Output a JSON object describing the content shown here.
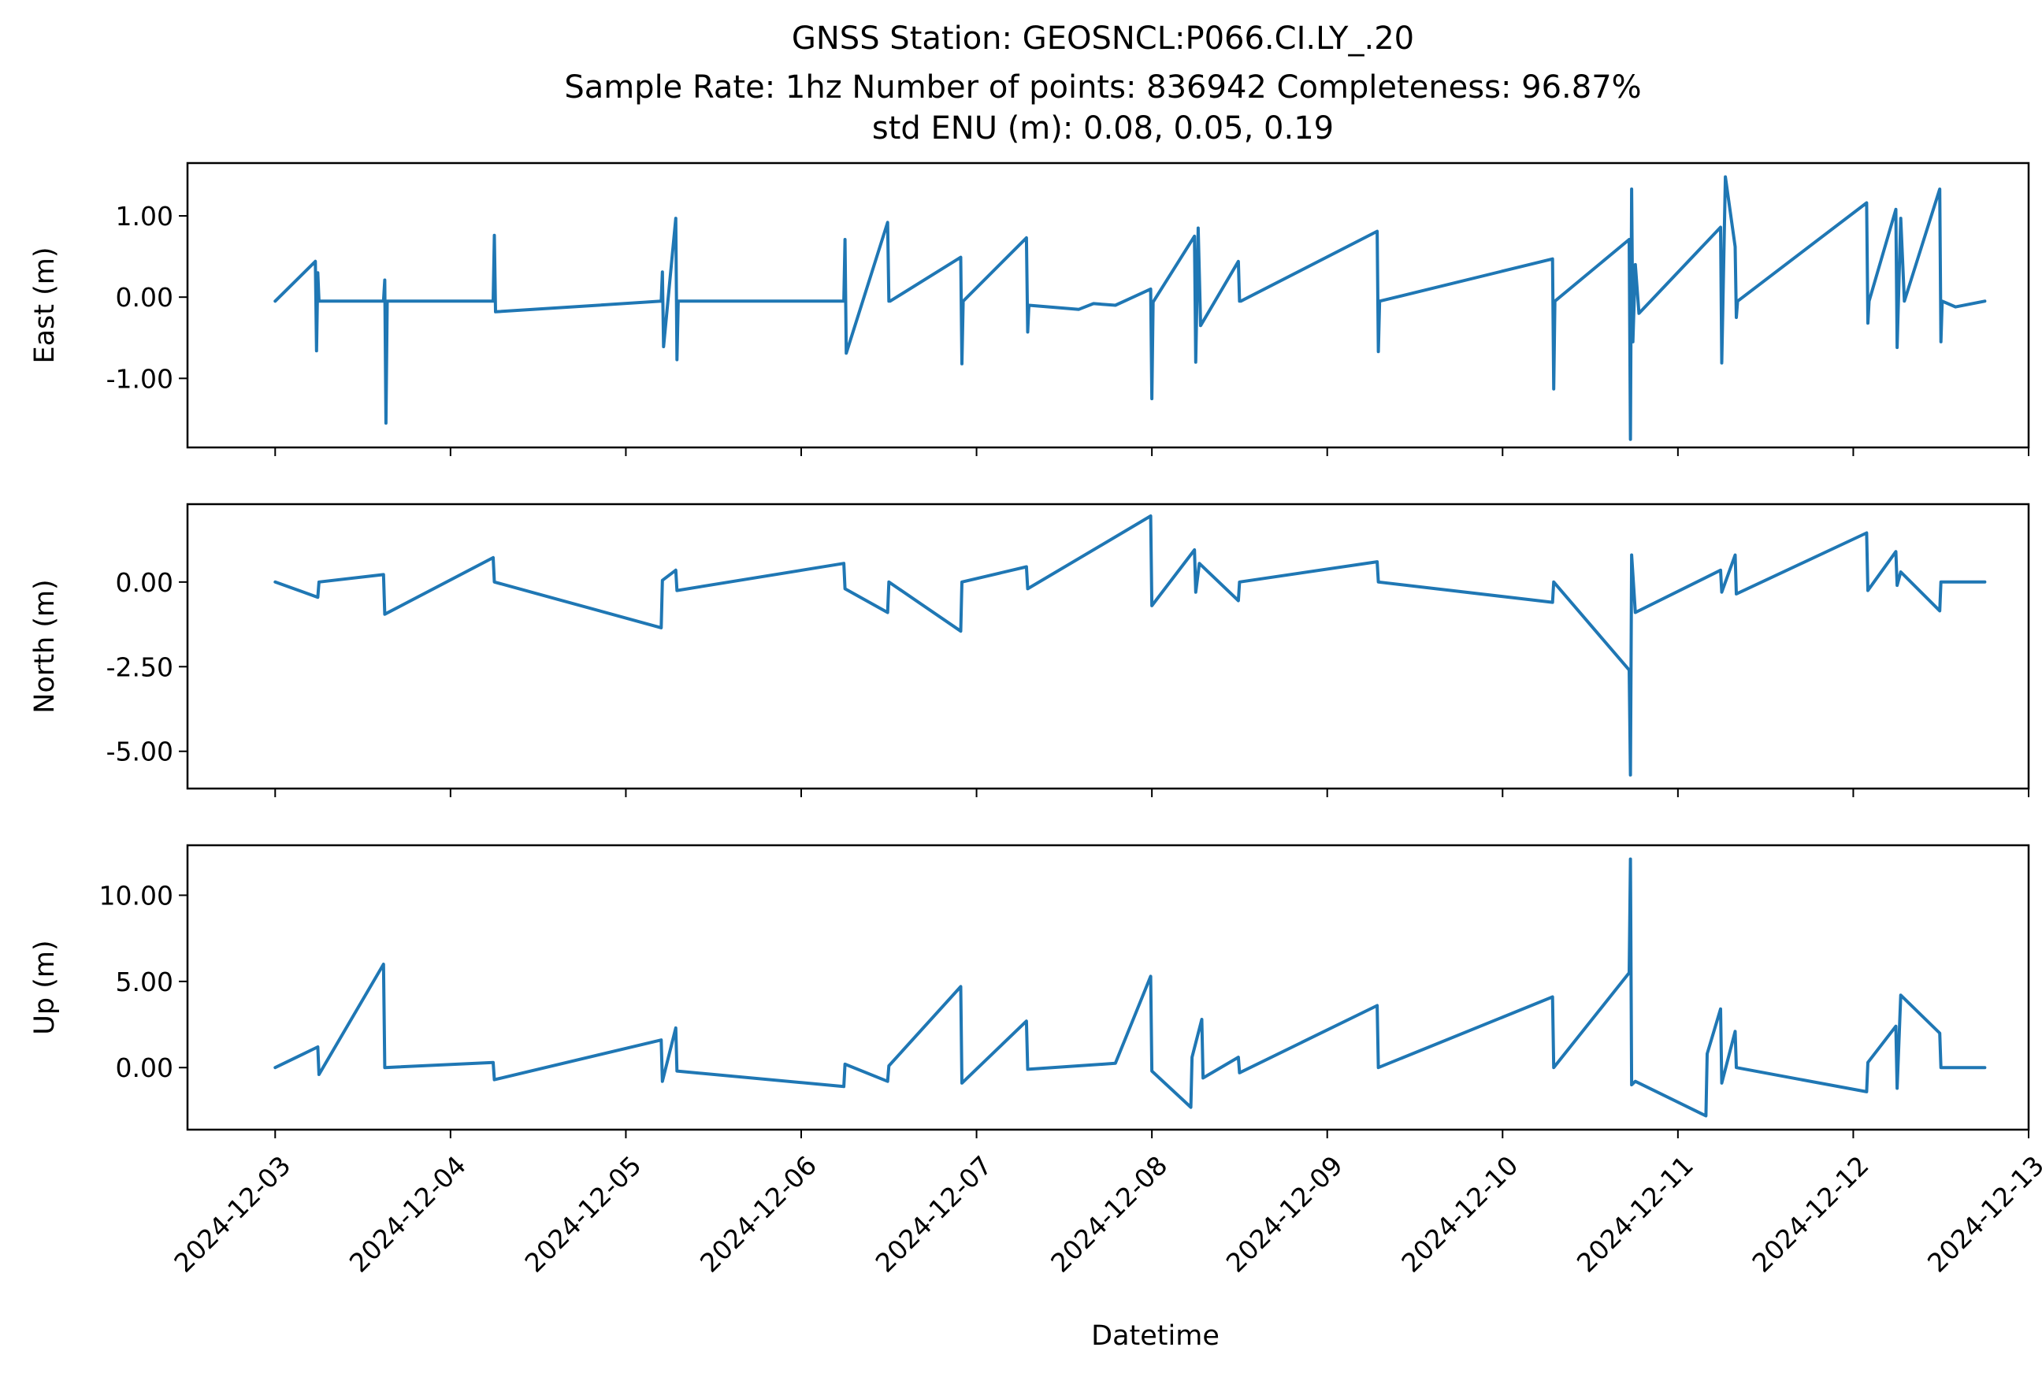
{
  "title_lines": [
    "GNSS Station: GEOSNCL:P066.CI.LY_.20",
    "Sample Rate: 1hz   Number of points: 836942    Completeness:  96.87%",
    "std ENU (m):  0.08, 0.05, 0.19"
  ],
  "colors": {
    "series": "#1f77b4",
    "axes": "#000000",
    "background": "#ffffff"
  },
  "chart_data": [
    {
      "type": "line",
      "title": "",
      "xlabel": "",
      "ylabel": "East (m)",
      "ylim": [
        -1.85,
        1.65
      ],
      "yticks": [
        1.0,
        0.0,
        -1.0
      ],
      "ytick_labels": [
        "1.00",
        "0.00",
        "-1.00"
      ],
      "xlim": [
        "2024-12-02T12:00",
        "2024-12-13T00:00"
      ],
      "xticks": [
        "2024-12-03",
        "2024-12-04",
        "2024-12-05",
        "2024-12-06",
        "2024-12-07",
        "2024-12-08",
        "2024-12-09",
        "2024-12-10",
        "2024-12-11",
        "2024-12-12",
        "2024-12-13"
      ],
      "show_xtick_labels": false,
      "grid": false,
      "series": [
        {
          "x": [
            "2024-12-03T00:00",
            "2024-12-03T05:30",
            "2024-12-03T05:40",
            "2024-12-03T05:50",
            "2024-12-03T06:00",
            "2024-12-03T14:50",
            "2024-12-03T15:00",
            "2024-12-03T15:10",
            "2024-12-03T15:20",
            "2024-12-04T05:50",
            "2024-12-04T06:00",
            "2024-12-04T06:10",
            "2024-12-05T04:50",
            "2024-12-05T05:00",
            "2024-12-05T05:10",
            "2024-12-05T06:50",
            "2024-12-05T07:00",
            "2024-12-05T07:10",
            "2024-12-06T05:50",
            "2024-12-06T06:00",
            "2024-12-06T06:10",
            "2024-12-06T11:50",
            "2024-12-06T12:00",
            "2024-12-06T12:10",
            "2024-12-06T21:50",
            "2024-12-06T22:00",
            "2024-12-06T22:10",
            "2024-12-07T06:50",
            "2024-12-07T07:00",
            "2024-12-07T07:10",
            "2024-12-07T14:00",
            "2024-12-07T16:00",
            "2024-12-07T19:00",
            "2024-12-07T23:50",
            "2024-12-08T00:00",
            "2024-12-08T00:10",
            "2024-12-08T05:50",
            "2024-12-08T06:00",
            "2024-12-08T06:20",
            "2024-12-08T06:40",
            "2024-12-08T11:50",
            "2024-12-08T12:00",
            "2024-12-08T12:10",
            "2024-12-09T06:50",
            "2024-12-09T07:00",
            "2024-12-09T07:10",
            "2024-12-10T06:50",
            "2024-12-10T07:00",
            "2024-12-10T07:10",
            "2024-12-10T17:20",
            "2024-12-10T17:30",
            "2024-12-10T17:40",
            "2024-12-10T17:50",
            "2024-12-10T18:10",
            "2024-12-10T18:40",
            "2024-12-11T05:50",
            "2024-12-11T06:00",
            "2024-12-11T06:30",
            "2024-12-11T07:50",
            "2024-12-11T08:00",
            "2024-12-11T08:10",
            "2024-12-12T01:50",
            "2024-12-12T02:00",
            "2024-12-12T02:10",
            "2024-12-12T05:50",
            "2024-12-12T06:00",
            "2024-12-12T06:30",
            "2024-12-12T07:00",
            "2024-12-12T11:50",
            "2024-12-12T12:00",
            "2024-12-12T12:10",
            "2024-12-12T14:00",
            "2024-12-12T18:00"
          ],
          "y": [
            -0.05,
            0.44,
            -0.66,
            0.3,
            -0.05,
            -0.05,
            0.21,
            -1.55,
            -0.05,
            -0.05,
            0.76,
            -0.18,
            -0.05,
            0.31,
            -0.61,
            0.97,
            -0.77,
            -0.05,
            -0.05,
            0.71,
            -0.69,
            0.92,
            -0.05,
            -0.05,
            0.49,
            -0.82,
            -0.05,
            0.73,
            -0.43,
            -0.1,
            -0.15,
            -0.08,
            -0.1,
            0.1,
            -1.25,
            -0.06,
            0.75,
            -0.8,
            0.85,
            -0.35,
            0.44,
            -0.05,
            -0.05,
            0.81,
            -0.67,
            -0.05,
            0.47,
            -1.13,
            -0.05,
            0.71,
            -1.75,
            1.33,
            -0.55,
            0.4,
            -0.2,
            0.86,
            -0.81,
            1.48,
            0.62,
            -0.25,
            -0.05,
            1.16,
            -0.32,
            -0.05,
            1.08,
            -0.62,
            0.97,
            -0.05,
            1.33,
            -0.55,
            -0.05,
            -0.12,
            -0.05
          ]
        }
      ]
    },
    {
      "type": "line",
      "title": "",
      "xlabel": "",
      "ylabel": "North (m)",
      "ylim": [
        -6.1,
        2.3
      ],
      "yticks": [
        0.0,
        -2.5,
        -5.0
      ],
      "ytick_labels": [
        "0.00",
        "-2.50",
        "-5.00"
      ],
      "xlim": [
        "2024-12-02T12:00",
        "2024-12-13T00:00"
      ],
      "xticks": [
        "2024-12-03",
        "2024-12-04",
        "2024-12-05",
        "2024-12-06",
        "2024-12-07",
        "2024-12-08",
        "2024-12-09",
        "2024-12-10",
        "2024-12-11",
        "2024-12-12",
        "2024-12-13"
      ],
      "show_xtick_labels": false,
      "grid": false,
      "series": [
        {
          "x": [
            "2024-12-03T00:00",
            "2024-12-03T05:50",
            "2024-12-03T06:00",
            "2024-12-03T14:50",
            "2024-12-03T15:00",
            "2024-12-04T05:50",
            "2024-12-04T06:00",
            "2024-12-05T04:50",
            "2024-12-05T05:00",
            "2024-12-05T06:50",
            "2024-12-05T07:00",
            "2024-12-06T05:50",
            "2024-12-06T06:00",
            "2024-12-06T11:50",
            "2024-12-06T12:00",
            "2024-12-06T21:50",
            "2024-12-06T22:00",
            "2024-12-07T06:50",
            "2024-12-07T07:00",
            "2024-12-07T23:50",
            "2024-12-08T00:00",
            "2024-12-08T05:50",
            "2024-12-08T06:00",
            "2024-12-08T06:30",
            "2024-12-08T11:50",
            "2024-12-08T12:00",
            "2024-12-09T06:50",
            "2024-12-09T07:00",
            "2024-12-10T06:50",
            "2024-12-10T07:00",
            "2024-12-10T17:20",
            "2024-12-10T17:30",
            "2024-12-10T17:40",
            "2024-12-10T18:10",
            "2024-12-11T05:50",
            "2024-12-11T06:00",
            "2024-12-11T07:50",
            "2024-12-11T08:00",
            "2024-12-12T01:50",
            "2024-12-12T02:00",
            "2024-12-12T05:50",
            "2024-12-12T06:00",
            "2024-12-12T06:30",
            "2024-12-12T11:50",
            "2024-12-12T12:00",
            "2024-12-12T18:00"
          ],
          "y": [
            0.0,
            -0.45,
            0.0,
            0.22,
            -0.95,
            0.72,
            0.0,
            -1.35,
            0.05,
            0.35,
            -0.25,
            0.55,
            -0.2,
            -0.9,
            0.0,
            -1.45,
            0.0,
            0.45,
            -0.2,
            1.95,
            -0.7,
            0.95,
            -0.3,
            0.55,
            -0.55,
            0.0,
            0.6,
            0.0,
            -0.6,
            0.0,
            -2.6,
            -5.7,
            0.8,
            -0.9,
            0.35,
            -0.3,
            0.8,
            -0.35,
            1.45,
            -0.25,
            0.9,
            -0.1,
            0.3,
            -0.85,
            0.0,
            0.0
          ]
        }
      ]
    },
    {
      "type": "line",
      "title": "",
      "xlabel": "Datetime",
      "ylabel": "Up (m)",
      "ylim": [
        -3.6,
        12.9
      ],
      "yticks": [
        10.0,
        5.0,
        0.0
      ],
      "ytick_labels": [
        "10.00",
        "5.00",
        "0.00"
      ],
      "xlim": [
        "2024-12-02T12:00",
        "2024-12-13T00:00"
      ],
      "xticks": [
        "2024-12-03",
        "2024-12-04",
        "2024-12-05",
        "2024-12-06",
        "2024-12-07",
        "2024-12-08",
        "2024-12-09",
        "2024-12-10",
        "2024-12-11",
        "2024-12-12",
        "2024-12-13"
      ],
      "xtick_labels": [
        "2024-12-03",
        "2024-12-04",
        "2024-12-05",
        "2024-12-06",
        "2024-12-07",
        "2024-12-08",
        "2024-12-09",
        "2024-12-10",
        "2024-12-11",
        "2024-12-12",
        "2024-12-13"
      ],
      "show_xtick_labels": true,
      "grid": false,
      "series": [
        {
          "x": [
            "2024-12-03T00:00",
            "2024-12-03T05:50",
            "2024-12-03T06:00",
            "2024-12-03T14:50",
            "2024-12-03T15:00",
            "2024-12-04T05:50",
            "2024-12-04T06:00",
            "2024-12-05T04:50",
            "2024-12-05T05:00",
            "2024-12-05T06:50",
            "2024-12-05T07:00",
            "2024-12-06T05:50",
            "2024-12-06T06:00",
            "2024-12-06T11:50",
            "2024-12-06T12:00",
            "2024-12-06T21:50",
            "2024-12-06T22:00",
            "2024-12-07T06:50",
            "2024-12-07T07:00",
            "2024-12-07T19:00",
            "2024-12-07T23:50",
            "2024-12-08T00:00",
            "2024-12-08T05:20",
            "2024-12-08T05:30",
            "2024-12-08T06:50",
            "2024-12-08T07:00",
            "2024-12-08T11:50",
            "2024-12-08T12:00",
            "2024-12-09T06:50",
            "2024-12-09T07:00",
            "2024-12-10T06:50",
            "2024-12-10T07:00",
            "2024-12-10T17:20",
            "2024-12-10T17:30",
            "2024-12-10T17:40",
            "2024-12-10T18:10",
            "2024-12-11T03:50",
            "2024-12-11T04:00",
            "2024-12-11T05:50",
            "2024-12-11T06:00",
            "2024-12-11T07:50",
            "2024-12-11T08:00",
            "2024-12-12T01:50",
            "2024-12-12T02:00",
            "2024-12-12T05:50",
            "2024-12-12T06:00",
            "2024-12-12T06:30",
            "2024-12-12T11:50",
            "2024-12-12T12:00",
            "2024-12-12T18:00"
          ],
          "y": [
            0.0,
            1.2,
            -0.4,
            6.0,
            0.0,
            0.3,
            -0.7,
            1.6,
            -0.8,
            2.3,
            -0.2,
            -1.1,
            0.2,
            -0.8,
            0.1,
            4.7,
            -0.9,
            2.7,
            -0.1,
            0.25,
            5.3,
            -0.2,
            -2.3,
            0.6,
            2.8,
            -0.6,
            0.6,
            -0.3,
            3.6,
            0.0,
            4.1,
            0.0,
            5.5,
            12.1,
            -1.0,
            -0.8,
            -2.8,
            0.8,
            3.4,
            -0.9,
            2.1,
            0.0,
            -1.4,
            0.3,
            2.4,
            -1.2,
            4.2,
            2.0,
            0.0,
            0.0
          ]
        }
      ]
    }
  ]
}
